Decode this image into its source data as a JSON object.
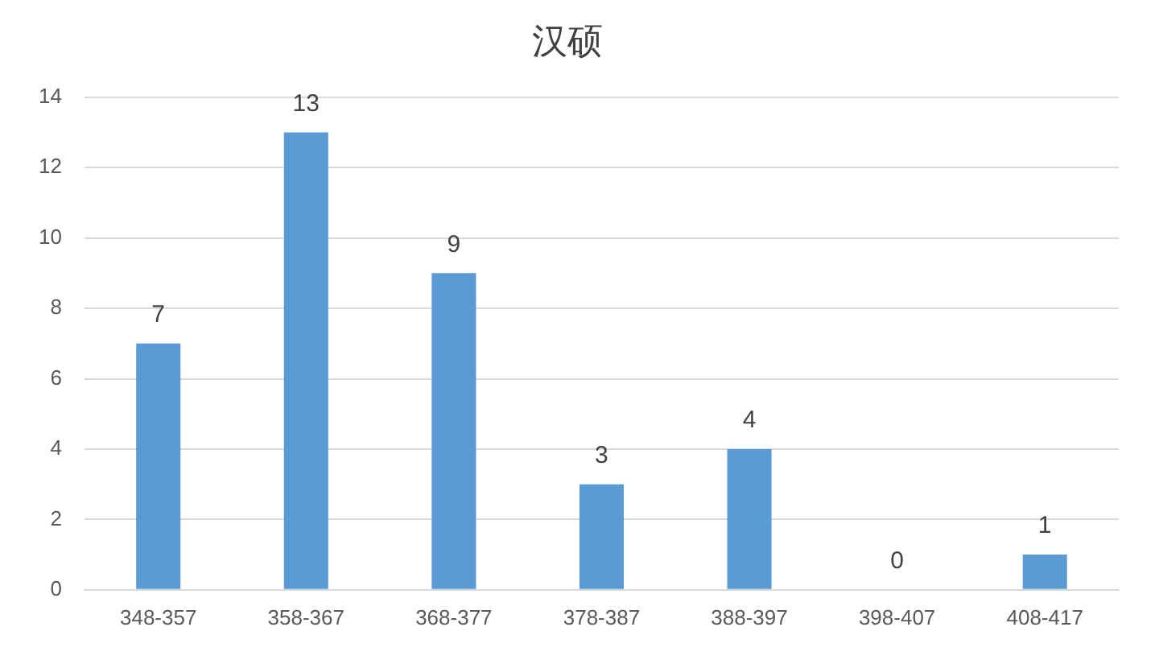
{
  "chart_data": {
    "type": "bar",
    "title": "汉硕",
    "categories": [
      "348-357",
      "358-367",
      "368-377",
      "378-387",
      "388-397",
      "398-407",
      "408-417"
    ],
    "values": [
      7,
      13,
      9,
      3,
      4,
      0,
      1
    ],
    "color": "#5b9bd5",
    "ylim": [
      0,
      14
    ],
    "yticks": [
      0,
      2,
      4,
      6,
      8,
      10,
      12,
      14
    ],
    "grid": "y",
    "data_labels": true,
    "legend": false
  }
}
